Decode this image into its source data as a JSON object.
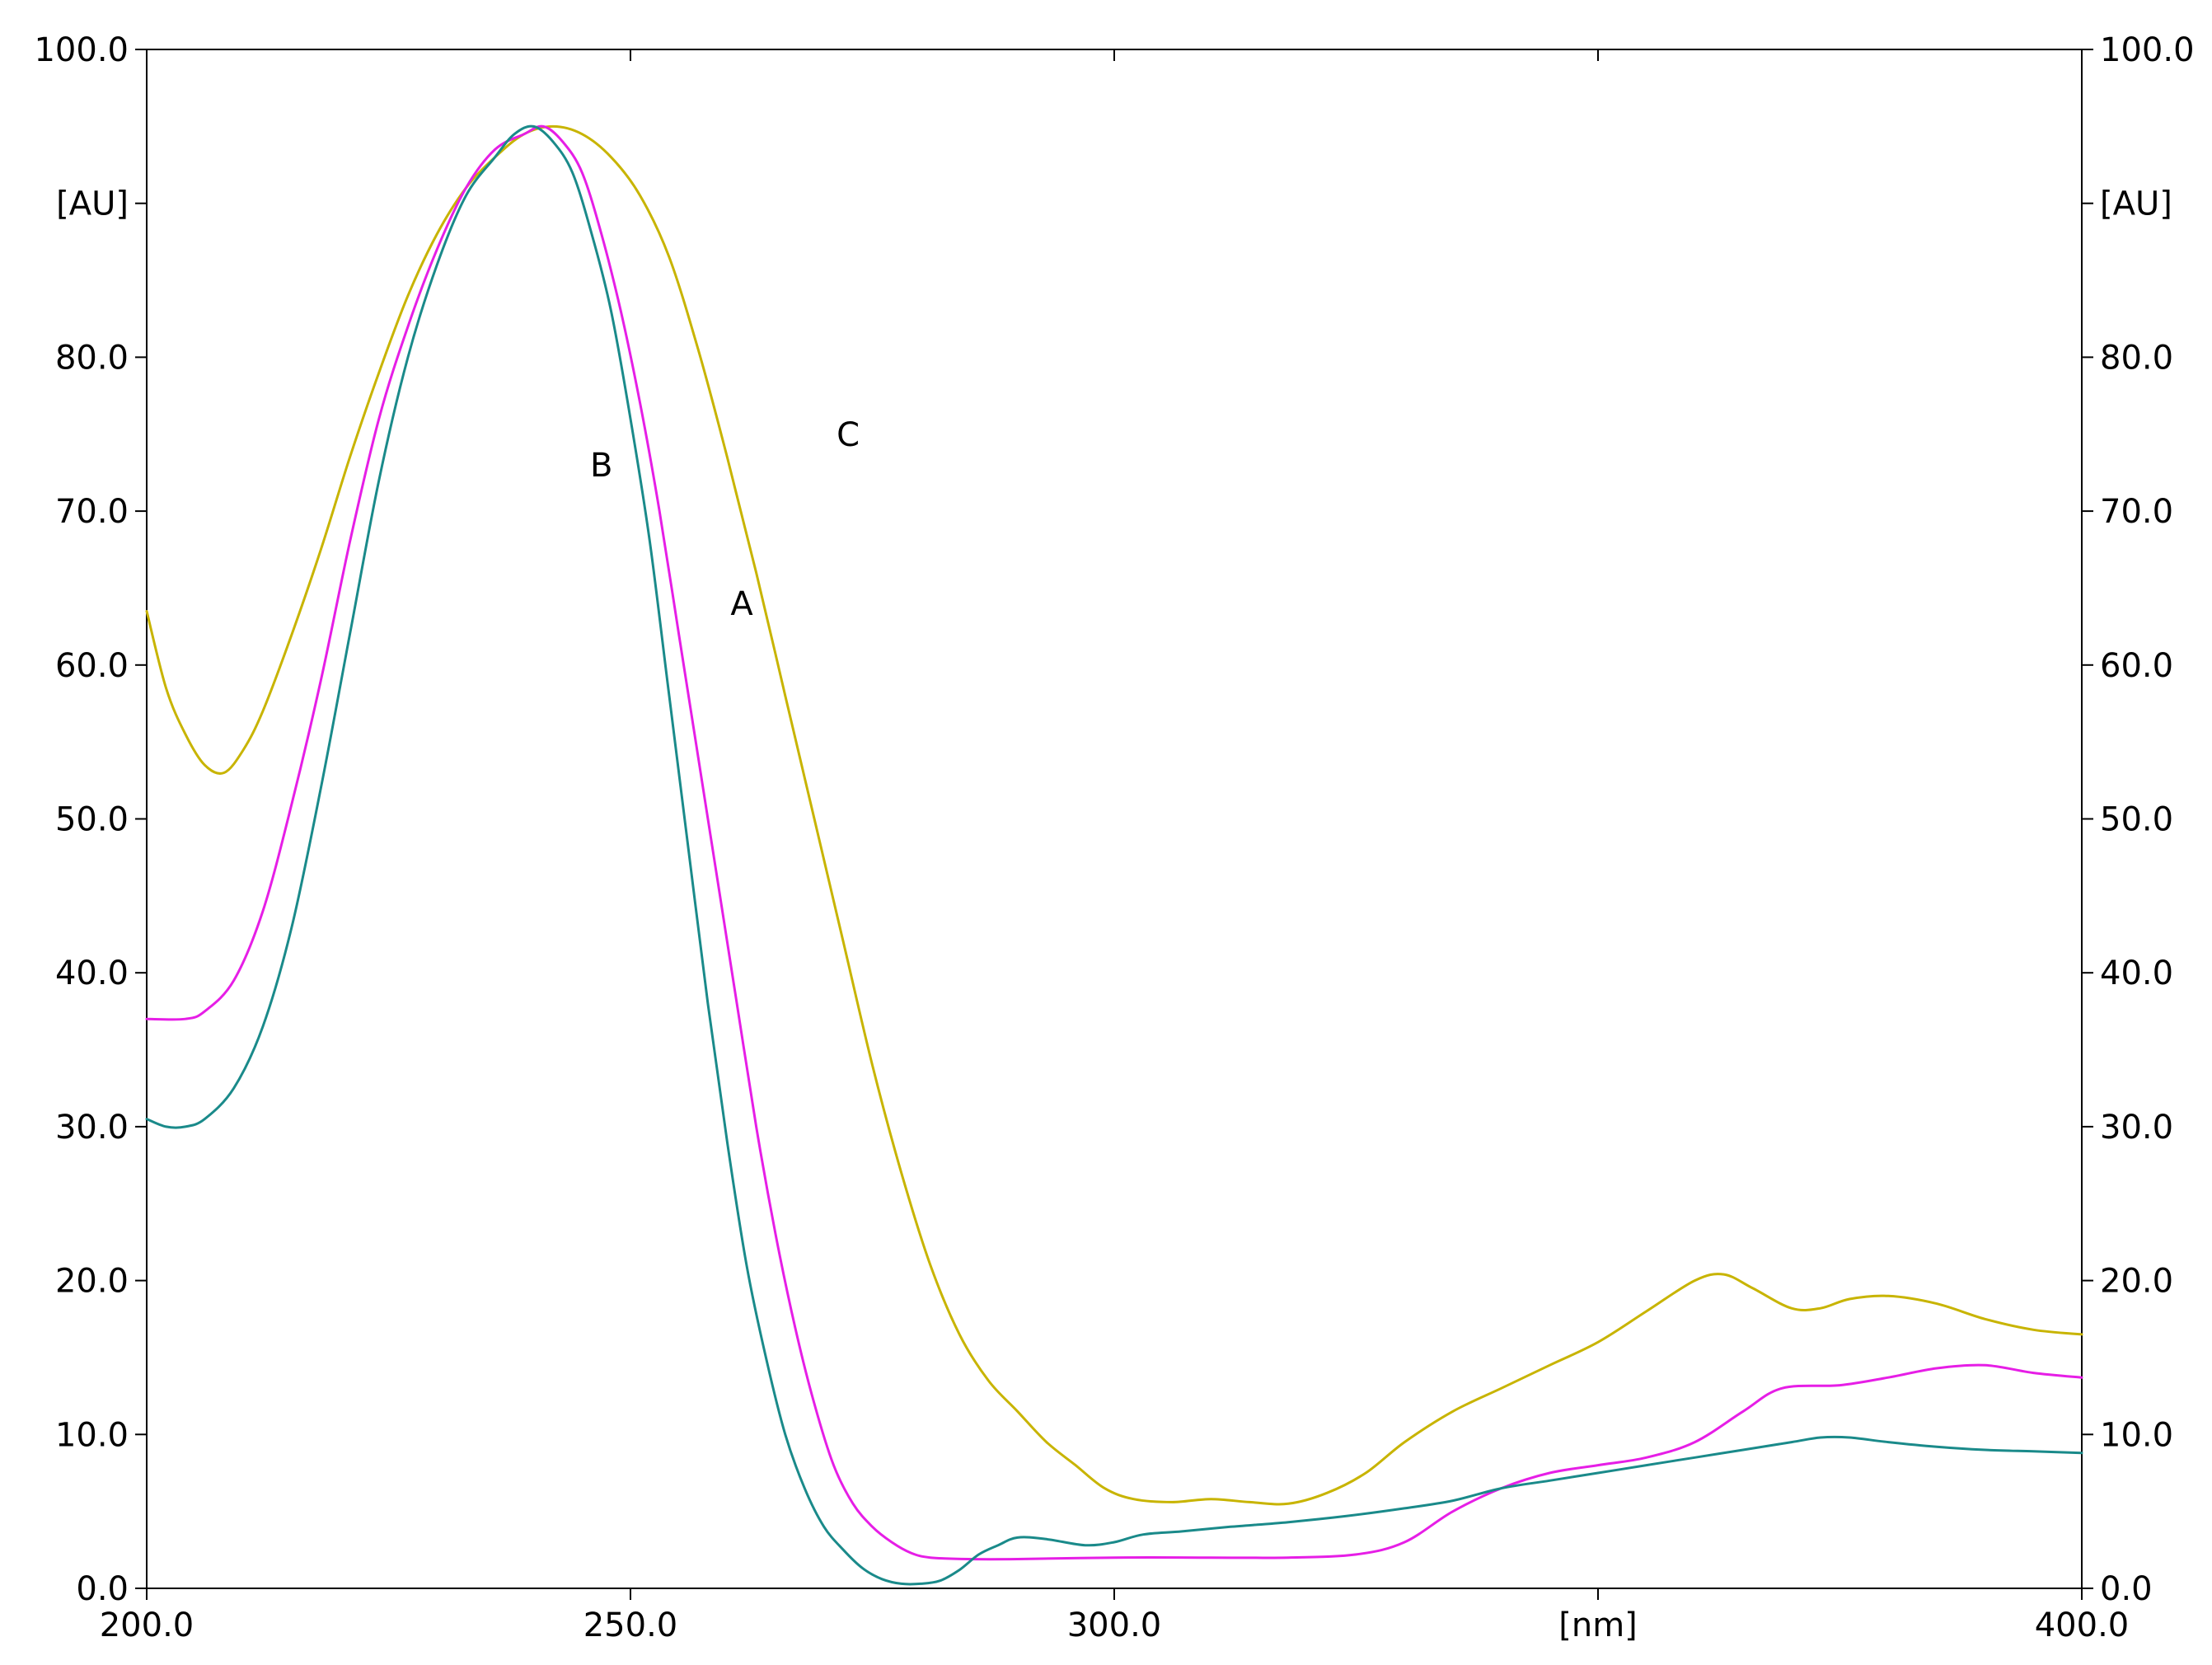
{
  "chart_data": {
    "type": "line",
    "x_range": [
      200,
      400
    ],
    "y_range": [
      0,
      100
    ],
    "x_ticks": [
      "200.0",
      "250.0",
      "300.0",
      "350.0",
      "400.0"
    ],
    "x_tick_values": [
      200,
      250,
      300,
      350,
      400
    ],
    "x_tick_label_text": [
      "200.0",
      "250.0",
      "300.0",
      "[nm]",
      "400.0"
    ],
    "x_unit_label": "[nm]",
    "y_ticks": [
      "0.0",
      "10.0",
      "20.0",
      "30.0",
      "40.0",
      "50.0",
      "60.0",
      "70.0",
      "80.0",
      "90.0",
      "100.0"
    ],
    "y_tick_values": [
      0,
      10,
      20,
      30,
      40,
      50,
      60,
      70,
      80,
      90,
      100
    ],
    "y_tick_label_text": [
      "0.0",
      "10.0",
      "20.0",
      "30.0",
      "40.0",
      "50.0",
      "60.0",
      "70.0",
      "80.0",
      "[AU]",
      "100.0"
    ],
    "y_unit_label": "[AU]",
    "grid": false,
    "series": [
      {
        "name": "A",
        "color": "#e61ee6",
        "points": [
          [
            200,
            37
          ],
          [
            204,
            37
          ],
          [
            206,
            37.5
          ],
          [
            209,
            39.5
          ],
          [
            212,
            44
          ],
          [
            215,
            51
          ],
          [
            218,
            59
          ],
          [
            221,
            68
          ],
          [
            224,
            76
          ],
          [
            227,
            82
          ],
          [
            230,
            87
          ],
          [
            233,
            91
          ],
          [
            236,
            93.5
          ],
          [
            239,
            94.5
          ],
          [
            241,
            95
          ],
          [
            243,
            94
          ],
          [
            245,
            92
          ],
          [
            247,
            88
          ],
          [
            249,
            83
          ],
          [
            251,
            77
          ],
          [
            253,
            70
          ],
          [
            255,
            62
          ],
          [
            257,
            54
          ],
          [
            259,
            46
          ],
          [
            261,
            38
          ],
          [
            263,
            30
          ],
          [
            265,
            23
          ],
          [
            267,
            17
          ],
          [
            269,
            12
          ],
          [
            271,
            8
          ],
          [
            273,
            5.5
          ],
          [
            275,
            4
          ],
          [
            277,
            3
          ],
          [
            279,
            2.3
          ],
          [
            281,
            2
          ],
          [
            285,
            1.9
          ],
          [
            290,
            1.9
          ],
          [
            300,
            2
          ],
          [
            310,
            2
          ],
          [
            318,
            2
          ],
          [
            325,
            2.2
          ],
          [
            330,
            3
          ],
          [
            335,
            5
          ],
          [
            340,
            6.5
          ],
          [
            345,
            7.5
          ],
          [
            350,
            8
          ],
          [
            355,
            8.5
          ],
          [
            360,
            9.5
          ],
          [
            365,
            11.5
          ],
          [
            369,
            13
          ],
          [
            375,
            13.2
          ],
          [
            380,
            13.7
          ],
          [
            385,
            14.3
          ],
          [
            390,
            14.5
          ],
          [
            395,
            14
          ],
          [
            400,
            13.7
          ]
        ]
      },
      {
        "name": "B",
        "color": "#1a8a8a",
        "points": [
          [
            200,
            30.5
          ],
          [
            202,
            30
          ],
          [
            204,
            30
          ],
          [
            206,
            30.5
          ],
          [
            209,
            32.5
          ],
          [
            212,
            36.5
          ],
          [
            215,
            43
          ],
          [
            218,
            52
          ],
          [
            221,
            62
          ],
          [
            224,
            72
          ],
          [
            227,
            80
          ],
          [
            230,
            86
          ],
          [
            233,
            90.5
          ],
          [
            236,
            93
          ],
          [
            238,
            94.5
          ],
          [
            240,
            95
          ],
          [
            242,
            94
          ],
          [
            244,
            92
          ],
          [
            246,
            88
          ],
          [
            248,
            83
          ],
          [
            250,
            76
          ],
          [
            252,
            68
          ],
          [
            254,
            58
          ],
          [
            256,
            48
          ],
          [
            258,
            38
          ],
          [
            260,
            29
          ],
          [
            262,
            21
          ],
          [
            264,
            15
          ],
          [
            266,
            10
          ],
          [
            268,
            6.5
          ],
          [
            270,
            4
          ],
          [
            272,
            2.5
          ],
          [
            274,
            1.3
          ],
          [
            276,
            0.6
          ],
          [
            278,
            0.3
          ],
          [
            280,
            0.3
          ],
          [
            282,
            0.5
          ],
          [
            284,
            1.2
          ],
          [
            286,
            2.2
          ],
          [
            288,
            2.8
          ],
          [
            290,
            3.3
          ],
          [
            293,
            3.2
          ],
          [
            297,
            2.8
          ],
          [
            300,
            3
          ],
          [
            303,
            3.5
          ],
          [
            307,
            3.7
          ],
          [
            312,
            4
          ],
          [
            318,
            4.3
          ],
          [
            324,
            4.7
          ],
          [
            330,
            5.2
          ],
          [
            335,
            5.7
          ],
          [
            340,
            6.5
          ],
          [
            345,
            7
          ],
          [
            350,
            7.5
          ],
          [
            355,
            8
          ],
          [
            360,
            8.5
          ],
          [
            365,
            9
          ],
          [
            370,
            9.5
          ],
          [
            373,
            9.8
          ],
          [
            376,
            9.8
          ],
          [
            380,
            9.5
          ],
          [
            385,
            9.2
          ],
          [
            390,
            9
          ],
          [
            395,
            8.9
          ],
          [
            400,
            8.8
          ]
        ]
      },
      {
        "name": "C",
        "color": "#c8b400",
        "points": [
          [
            200,
            63.5
          ],
          [
            202,
            58.5
          ],
          [
            204,
            55.5
          ],
          [
            206,
            53.5
          ],
          [
            208,
            53
          ],
          [
            210,
            54.5
          ],
          [
            212,
            57
          ],
          [
            215,
            62
          ],
          [
            218,
            67.5
          ],
          [
            221,
            73.5
          ],
          [
            224,
            79
          ],
          [
            227,
            84
          ],
          [
            230,
            88
          ],
          [
            233,
            91
          ],
          [
            236,
            93
          ],
          [
            239,
            94.5
          ],
          [
            242,
            95
          ],
          [
            245,
            94.5
          ],
          [
            248,
            93
          ],
          [
            251,
            90.5
          ],
          [
            254,
            86.5
          ],
          [
            257,
            80.5
          ],
          [
            260,
            73.5
          ],
          [
            263,
            66
          ],
          [
            266,
            58
          ],
          [
            269,
            50
          ],
          [
            272,
            42
          ],
          [
            275,
            34
          ],
          [
            278,
            27
          ],
          [
            281,
            21
          ],
          [
            284,
            16.5
          ],
          [
            287,
            13.5
          ],
          [
            290,
            11.5
          ],
          [
            293,
            9.5
          ],
          [
            296,
            8
          ],
          [
            299,
            6.5
          ],
          [
            302,
            5.8
          ],
          [
            306,
            5.6
          ],
          [
            310,
            5.8
          ],
          [
            314,
            5.6
          ],
          [
            318,
            5.5
          ],
          [
            322,
            6.2
          ],
          [
            326,
            7.5
          ],
          [
            330,
            9.5
          ],
          [
            335,
            11.5
          ],
          [
            340,
            13
          ],
          [
            345,
            14.5
          ],
          [
            350,
            16
          ],
          [
            355,
            18
          ],
          [
            360,
            20
          ],
          [
            363,
            20.4
          ],
          [
            366,
            19.5
          ],
          [
            370,
            18.2
          ],
          [
            373,
            18.2
          ],
          [
            376,
            18.8
          ],
          [
            380,
            19
          ],
          [
            385,
            18.5
          ],
          [
            390,
            17.5
          ],
          [
            395,
            16.8
          ],
          [
            400,
            16.5
          ]
        ]
      }
    ],
    "curve_labels": [
      {
        "text": "A",
        "x": 261.5,
        "y": 64
      },
      {
        "text": "B",
        "x": 247,
        "y": 73
      },
      {
        "text": "C",
        "x": 272.5,
        "y": 75
      }
    ]
  }
}
